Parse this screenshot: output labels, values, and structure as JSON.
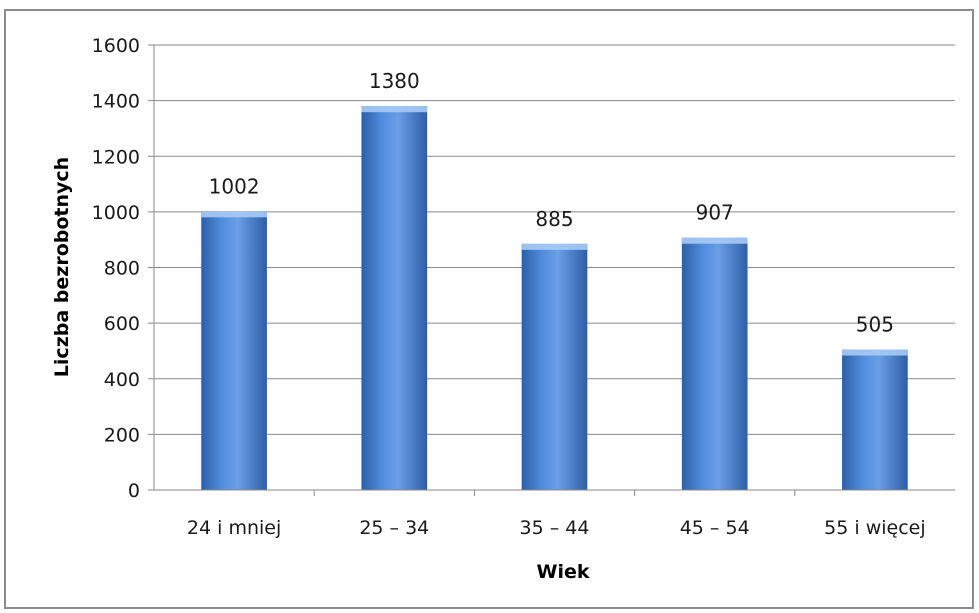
{
  "chart_data": {
    "type": "bar",
    "categories": [
      "24 i mniej",
      "25 – 34",
      "35 – 44",
      "45 – 54",
      "55 i więcej"
    ],
    "values": [
      1002,
      1380,
      885,
      907,
      505
    ],
    "data_labels": [
      "1002",
      "1380",
      "885",
      "907",
      "505"
    ],
    "title": "",
    "xlabel": "Wiek",
    "ylabel": "Liczba bezrobotnych",
    "ylim": [
      0,
      1600
    ],
    "yticks": [
      0,
      200,
      400,
      600,
      800,
      1000,
      1200,
      1400,
      1600
    ],
    "grid": true,
    "legend": "none",
    "colors": {
      "bar_light": "#8db8ef",
      "bar_mid": "#4f8bdc",
      "bar_dark": "#2c5fa8",
      "bar_top": "#a9cbf5",
      "frame": "#8c8c8c"
    }
  }
}
